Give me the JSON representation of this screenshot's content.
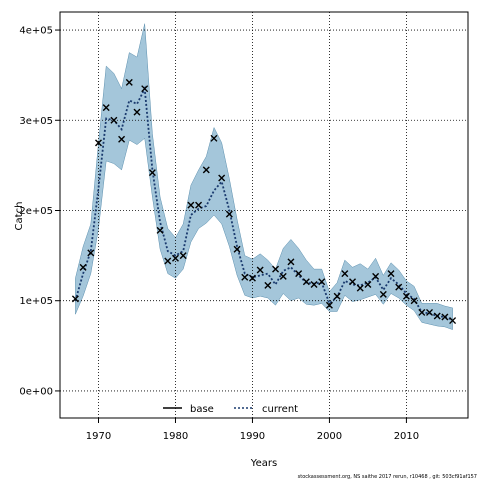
{
  "chart_data": {
    "type": "line",
    "title": "",
    "xlabel": "Years",
    "ylabel": "Catch",
    "xlim": [
      1965,
      2018
    ],
    "ylim": [
      -30000,
      420000
    ],
    "x_ticks": [
      1970,
      1980,
      1990,
      2000,
      2010
    ],
    "x_tick_labels": [
      "1970",
      "1980",
      "1990",
      "2000",
      "2010"
    ],
    "y_ticks": [
      0,
      100000,
      200000,
      300000,
      400000
    ],
    "y_tick_labels": [
      "0e+00",
      "1e+05",
      "2e+05",
      "3e+05",
      "4e+05"
    ],
    "grid": true,
    "legend_position": "bottom-center",
    "legend": [
      {
        "label": "base",
        "style": "solid",
        "color": "#000000"
      },
      {
        "label": "current",
        "style": "dotted",
        "color": "#1a3a6e"
      }
    ],
    "band_color": "#4a8db5",
    "x": [
      1967,
      1968,
      1969,
      1970,
      1971,
      1972,
      1973,
      1974,
      1975,
      1976,
      1977,
      1978,
      1979,
      1980,
      1981,
      1982,
      1983,
      1984,
      1985,
      1986,
      1987,
      1988,
      1989,
      1990,
      1991,
      1992,
      1993,
      1994,
      1995,
      1996,
      1997,
      1998,
      1999,
      2000,
      2001,
      2002,
      2003,
      2004,
      2005,
      2006,
      2007,
      2008,
      2009,
      2010,
      2011,
      2012,
      2013,
      2014,
      2015,
      2016
    ],
    "series": [
      {
        "name": "current",
        "values": [
          100000,
          130000,
          155000,
          225000,
          302000,
          300000,
          290000,
          322000,
          318000,
          335000,
          245000,
          187000,
          155000,
          150000,
          155000,
          195000,
          202000,
          205000,
          222000,
          232000,
          200000,
          160000,
          130000,
          126000,
          128000,
          130000,
          118000,
          133000,
          137000,
          128000,
          120000,
          119000,
          120000,
          97000,
          104000,
          122000,
          118000,
          117000,
          120000,
          126000,
          112000,
          125000,
          118000,
          108000,
          102000,
          87000,
          86000,
          83000,
          82000,
          79000
        ],
        "lower": [
          85000,
          105000,
          130000,
          180000,
          255000,
          252000,
          245000,
          278000,
          273000,
          280000,
          215000,
          157000,
          130000,
          125000,
          135000,
          165000,
          180000,
          186000,
          195000,
          185000,
          160000,
          128000,
          106000,
          103000,
          105000,
          103000,
          95000,
          108000,
          100000,
          103000,
          96000,
          95000,
          97000,
          88000,
          88000,
          106000,
          99000,
          101000,
          104000,
          107000,
          96000,
          108000,
          103000,
          95000,
          89000,
          76000,
          74000,
          72000,
          71000,
          68000
        ],
        "upper": [
          125000,
          160000,
          185000,
          275000,
          360000,
          352000,
          335000,
          375000,
          370000,
          407000,
          285000,
          215000,
          180000,
          170000,
          185000,
          228000,
          245000,
          260000,
          292000,
          275000,
          235000,
          190000,
          150000,
          146000,
          152000,
          145000,
          135000,
          158000,
          168000,
          158000,
          145000,
          135000,
          135000,
          110000,
          120000,
          145000,
          137000,
          141000,
          135000,
          147000,
          128000,
          142000,
          134000,
          122000,
          116000,
          97000,
          97000,
          97000,
          94000,
          92000
        ]
      },
      {
        "name": "observed",
        "values": [
          102000,
          137000,
          153000,
          275000,
          314000,
          300000,
          279000,
          342000,
          309000,
          335000,
          242000,
          178000,
          144000,
          147000,
          150000,
          206000,
          206000,
          245000,
          280000,
          236000,
          196000,
          157000,
          126000,
          125000,
          134000,
          117000,
          135000,
          127000,
          143000,
          130000,
          121000,
          118000,
          121000,
          95000,
          105000,
          130000,
          121000,
          114000,
          118000,
          127000,
          107000,
          130000,
          115000,
          105000,
          100000,
          87000,
          87000,
          83000,
          82000,
          78000
        ]
      }
    ]
  },
  "footnote": "stockassessment.org, NS saithe 2017 rerun, r10468 , git: 503cf91af157"
}
